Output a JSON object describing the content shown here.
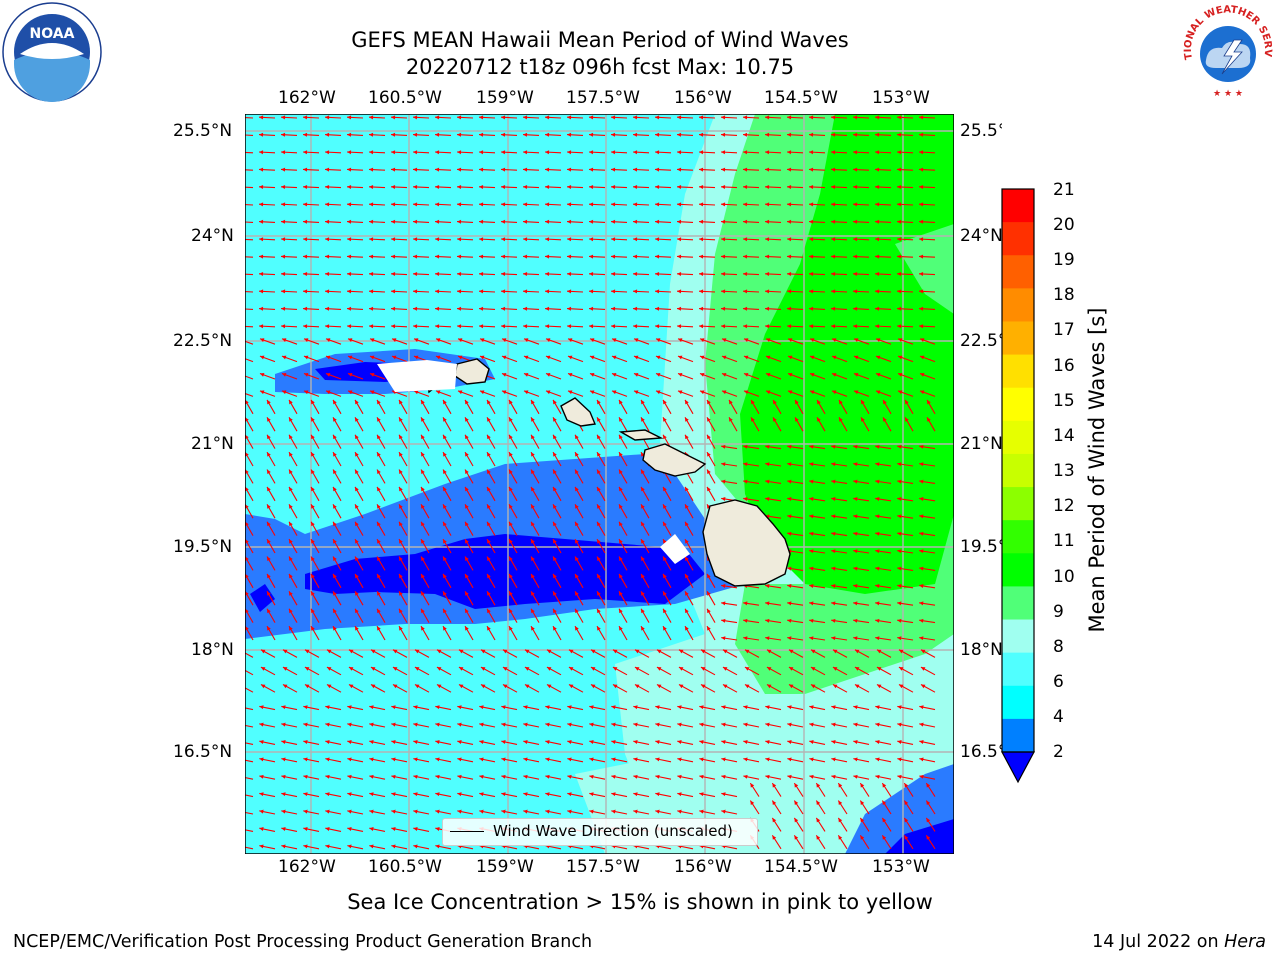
{
  "title": {
    "line1": "GEFS MEAN Hawaii Mean Period of Wind Waves",
    "line2": "20220712 t18z 096h fcst   Max: 10.75"
  },
  "axes": {
    "lon_labels": [
      "162°W",
      "160.5°W",
      "159°W",
      "157.5°W",
      "156°W",
      "154.5°W",
      "153°W"
    ],
    "lat_labels": [
      "25.5°N",
      "24°N",
      "22.5°N",
      "21°N",
      "19.5°N",
      "18°N",
      "16.5°N"
    ]
  },
  "legend": {
    "label": "Wind Wave Direction (unscaled)"
  },
  "colorbar": {
    "title": "Mean Period of Wind Waves [s]",
    "ticks": [
      "21",
      "20",
      "19",
      "18",
      "17",
      "16",
      "15",
      "14",
      "13",
      "12",
      "11",
      "10",
      "9",
      "8",
      "6",
      "4",
      "2"
    ],
    "colors": [
      "#ff0000",
      "#ff3000",
      "#ff6000",
      "#ff8c00",
      "#ffb000",
      "#ffe000",
      "#ffff00",
      "#e6ff00",
      "#c8ff00",
      "#8cff00",
      "#32ff00",
      "#00ff00",
      "#50ff78",
      "#a0fff0",
      "#50ffff",
      "#00ffff",
      "#0080ff"
    ],
    "under_color": "#0000ff"
  },
  "caption": "Sea Ice Concentration > 15% is shown in pink to yellow",
  "footer": {
    "left": "NCEP/EMC/Verification Post Processing Product Generation Branch",
    "right_prefix": "14 Jul 2022 on ",
    "right_host": "Hera"
  },
  "logos": {
    "noaa_text": "NOAA",
    "nws_text": "NATIONAL WEATHER SERVICE"
  },
  "colors": {
    "arrow": "#ff0000",
    "land": "#efebdc",
    "gridline": "#b4b4b4"
  }
}
